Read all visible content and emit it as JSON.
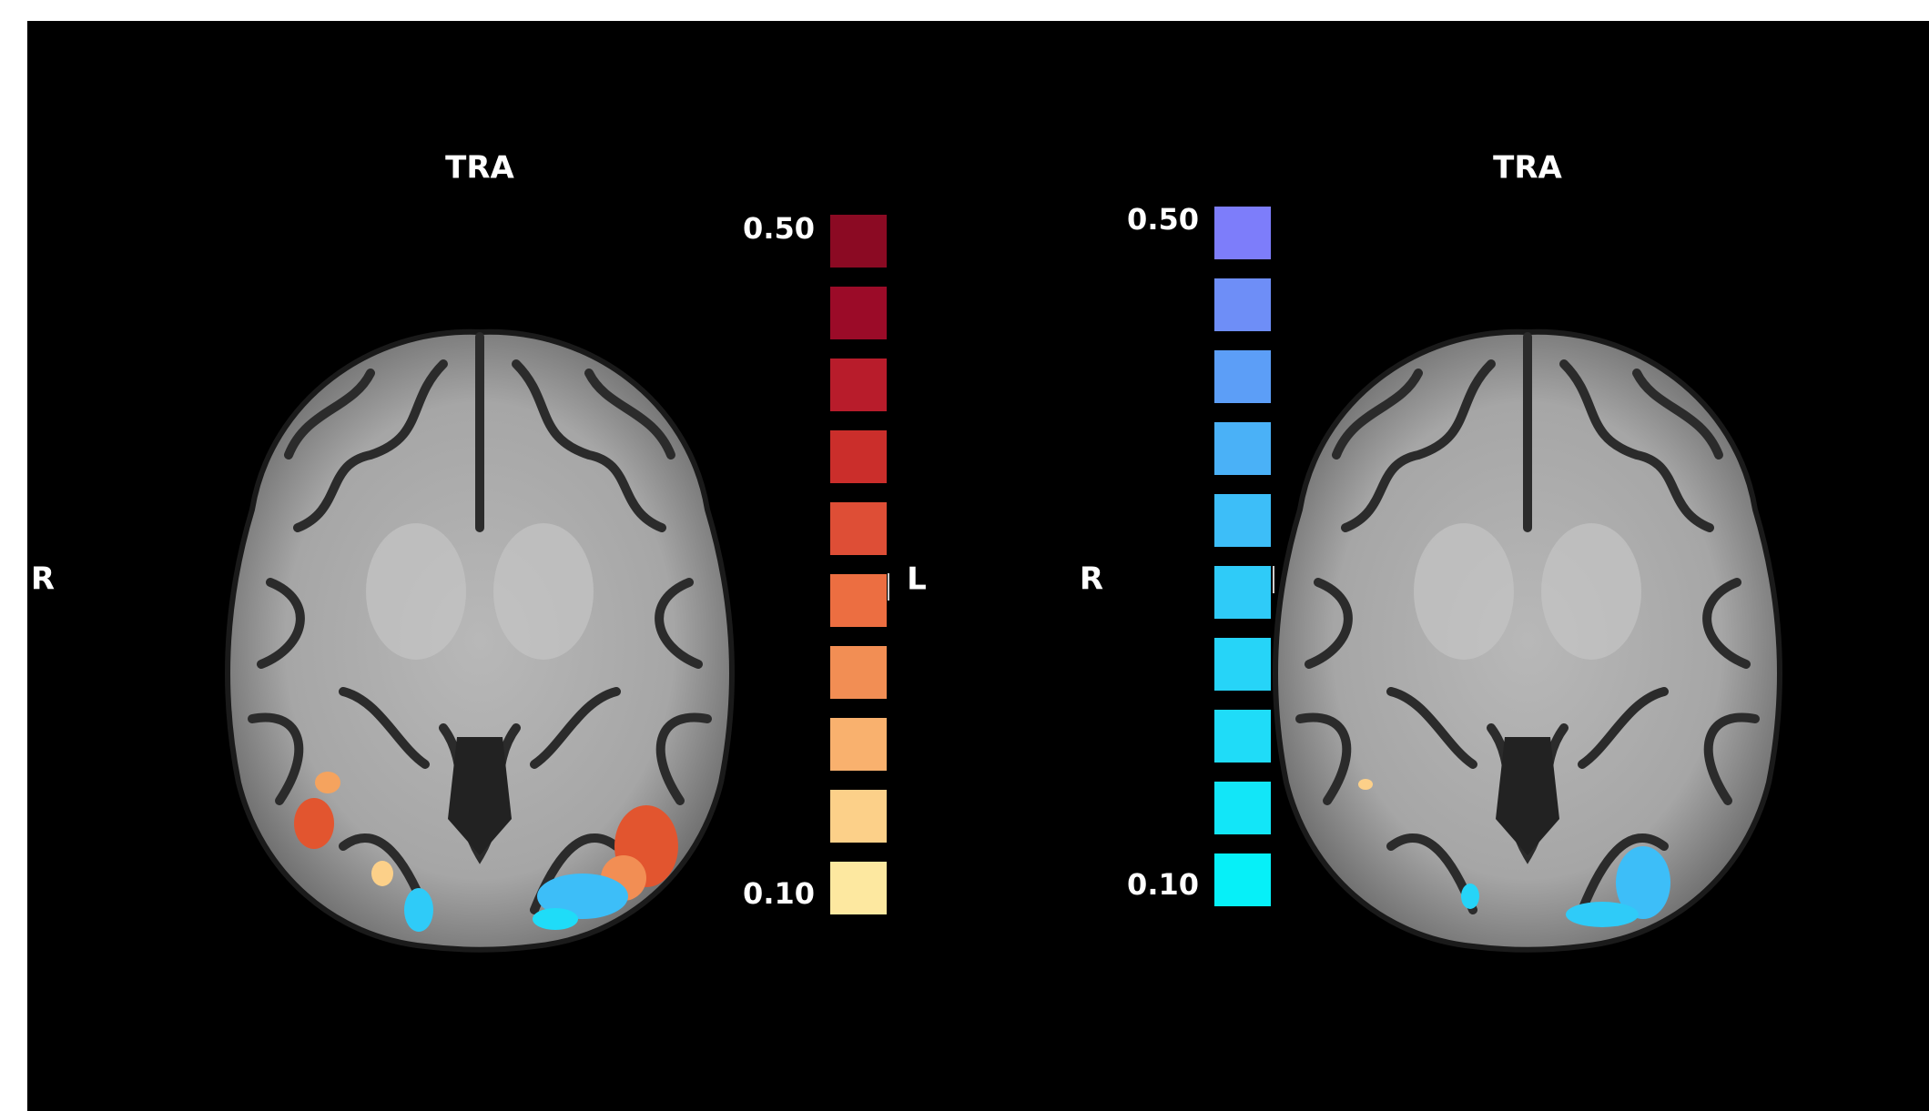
{
  "panels": [
    {
      "title": "TRA",
      "left_label": "R",
      "right_label": "L",
      "colorbar": {
        "max_label": "0.50",
        "min_label": "0.10",
        "colors": [
          "#8b0a23",
          "#9b0b28",
          "#b81c2b",
          "#cb2e2b",
          "#de4e36",
          "#ec6e41",
          "#f28e54",
          "#f9b16e",
          "#fcd089",
          "#fde8a0"
        ]
      }
    },
    {
      "title": "TRA",
      "left_label": "R",
      "colorbar": {
        "max_label": "0.50",
        "min_label": "0.10",
        "colors": [
          "#7d7dfa",
          "#6e8ef7",
          "#5c9ef7",
          "#4ab1f7",
          "#3dbef8",
          "#2fcbf8",
          "#26d4f8",
          "#1fdcf8",
          "#12e6f8",
          "#06f0f8"
        ]
      }
    }
  ]
}
